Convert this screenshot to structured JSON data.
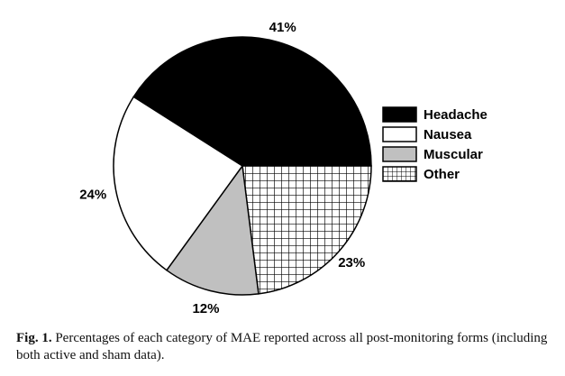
{
  "chart_data": {
    "type": "pie",
    "slices": [
      {
        "label": "Headache",
        "value": 41,
        "display": "41%",
        "fill": "#000000"
      },
      {
        "label": "Other",
        "value": 23,
        "display": "23%",
        "fill": "pattern-grid"
      },
      {
        "label": "Muscular",
        "value": 12,
        "display": "12%",
        "fill": "#c0c0c0"
      },
      {
        "label": "Nausea",
        "value": 24,
        "display": "24%",
        "fill": "#ffffff"
      }
    ],
    "legend": [
      "Headache",
      "Nausea",
      "Muscular",
      "Other"
    ],
    "legend_position": "right",
    "start_direction": "east",
    "direction": "counterclockwise-for-headache-first"
  },
  "caption": {
    "label": "Fig. 1.",
    "text": "Percentages of each category of MAE reported across all post-monitoring forms (including both active and sham data)."
  }
}
